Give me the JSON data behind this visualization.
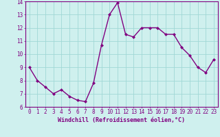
{
  "x": [
    0,
    1,
    2,
    3,
    4,
    5,
    6,
    7,
    8,
    9,
    10,
    11,
    12,
    13,
    14,
    15,
    16,
    17,
    18,
    19,
    20,
    21,
    22,
    23
  ],
  "y": [
    9.0,
    8.0,
    7.5,
    7.0,
    7.3,
    6.8,
    6.5,
    6.4,
    7.8,
    10.7,
    13.0,
    13.9,
    11.5,
    11.3,
    12.0,
    12.0,
    12.0,
    11.5,
    11.5,
    10.5,
    9.9,
    9.0,
    8.6,
    9.6
  ],
  "line_color": "#800080",
  "marker": "D",
  "marker_size": 2,
  "line_width": 1.0,
  "bg_color": "#cff0ee",
  "grid_color": "#a0d8d5",
  "xlabel": "Windchill (Refroidissement éolien,°C)",
  "xlabel_color": "#800080",
  "tick_color": "#800080",
  "spine_color": "#800080",
  "ylim": [
    6,
    14
  ],
  "xlim": [
    -0.5,
    23.5
  ],
  "yticks": [
    6,
    7,
    8,
    9,
    10,
    11,
    12,
    13,
    14
  ],
  "xticks": [
    0,
    1,
    2,
    3,
    4,
    5,
    6,
    7,
    8,
    9,
    10,
    11,
    12,
    13,
    14,
    15,
    16,
    17,
    18,
    19,
    20,
    21,
    22,
    23
  ],
  "tick_fontsize": 5.5,
  "xlabel_fontsize": 6.0
}
